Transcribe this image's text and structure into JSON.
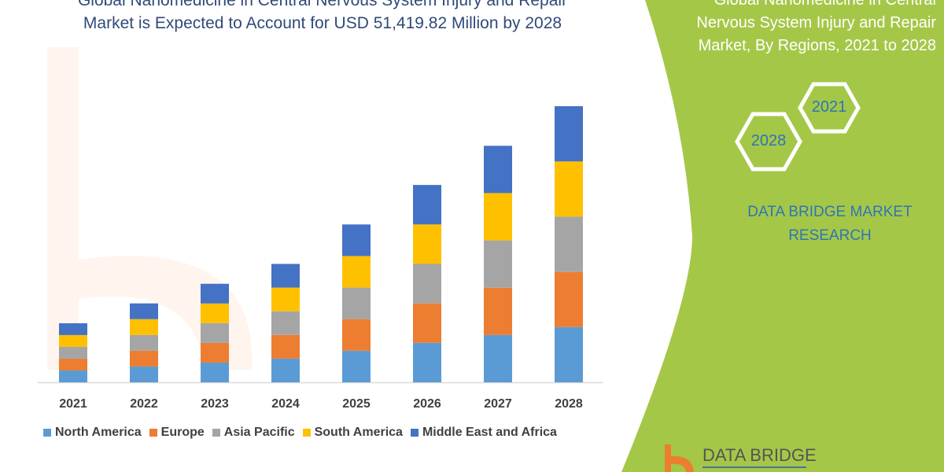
{
  "title": "Global Nanomedicine in Central Nervous System Injury and Repair Market is Expected to Account for USD 51,419.82 Million by 2028",
  "side_panel": {
    "title": "Global Nanomedicine in Central Nervous System Injury and Repair Market, By Regions, 2021 to 2028",
    "hex_start": "2021",
    "hex_end": "2028",
    "brand": "DATA BRIDGE MARKET RESEARCH",
    "logo_text": "DATA BRIDGE",
    "panel_color": "#a5c748"
  },
  "chart_data": {
    "type": "bar",
    "stacked": true,
    "title": "",
    "xlabel": "",
    "ylabel": "",
    "unit": "USD Million",
    "grid": false,
    "legend_position": "bottom",
    "categories": [
      "2021",
      "2022",
      "2023",
      "2024",
      "2025",
      "2026",
      "2027",
      "2028"
    ],
    "ylim": [
      0,
      52000
    ],
    "series": [
      {
        "name": "North America",
        "color": "#5b9bd5",
        "values": [
          2200,
          2940,
          3670,
          4410,
          5880,
          7350,
          8810,
          10280
        ]
      },
      {
        "name": "Europe",
        "color": "#ed7d31",
        "values": [
          2200,
          2940,
          3670,
          4410,
          5880,
          7350,
          8810,
          10280
        ]
      },
      {
        "name": "Asia Pacific",
        "color": "#a5a5a5",
        "values": [
          2200,
          2940,
          3670,
          4410,
          5880,
          7350,
          8810,
          10290
        ]
      },
      {
        "name": "South America",
        "color": "#ffc000",
        "values": [
          2200,
          2940,
          3670,
          4410,
          5880,
          7350,
          8810,
          10280
        ]
      },
      {
        "name": "Middle East and Africa",
        "color": "#4472c4",
        "values": [
          2200,
          2940,
          3670,
          4410,
          5880,
          7350,
          8810,
          10290
        ]
      }
    ]
  }
}
